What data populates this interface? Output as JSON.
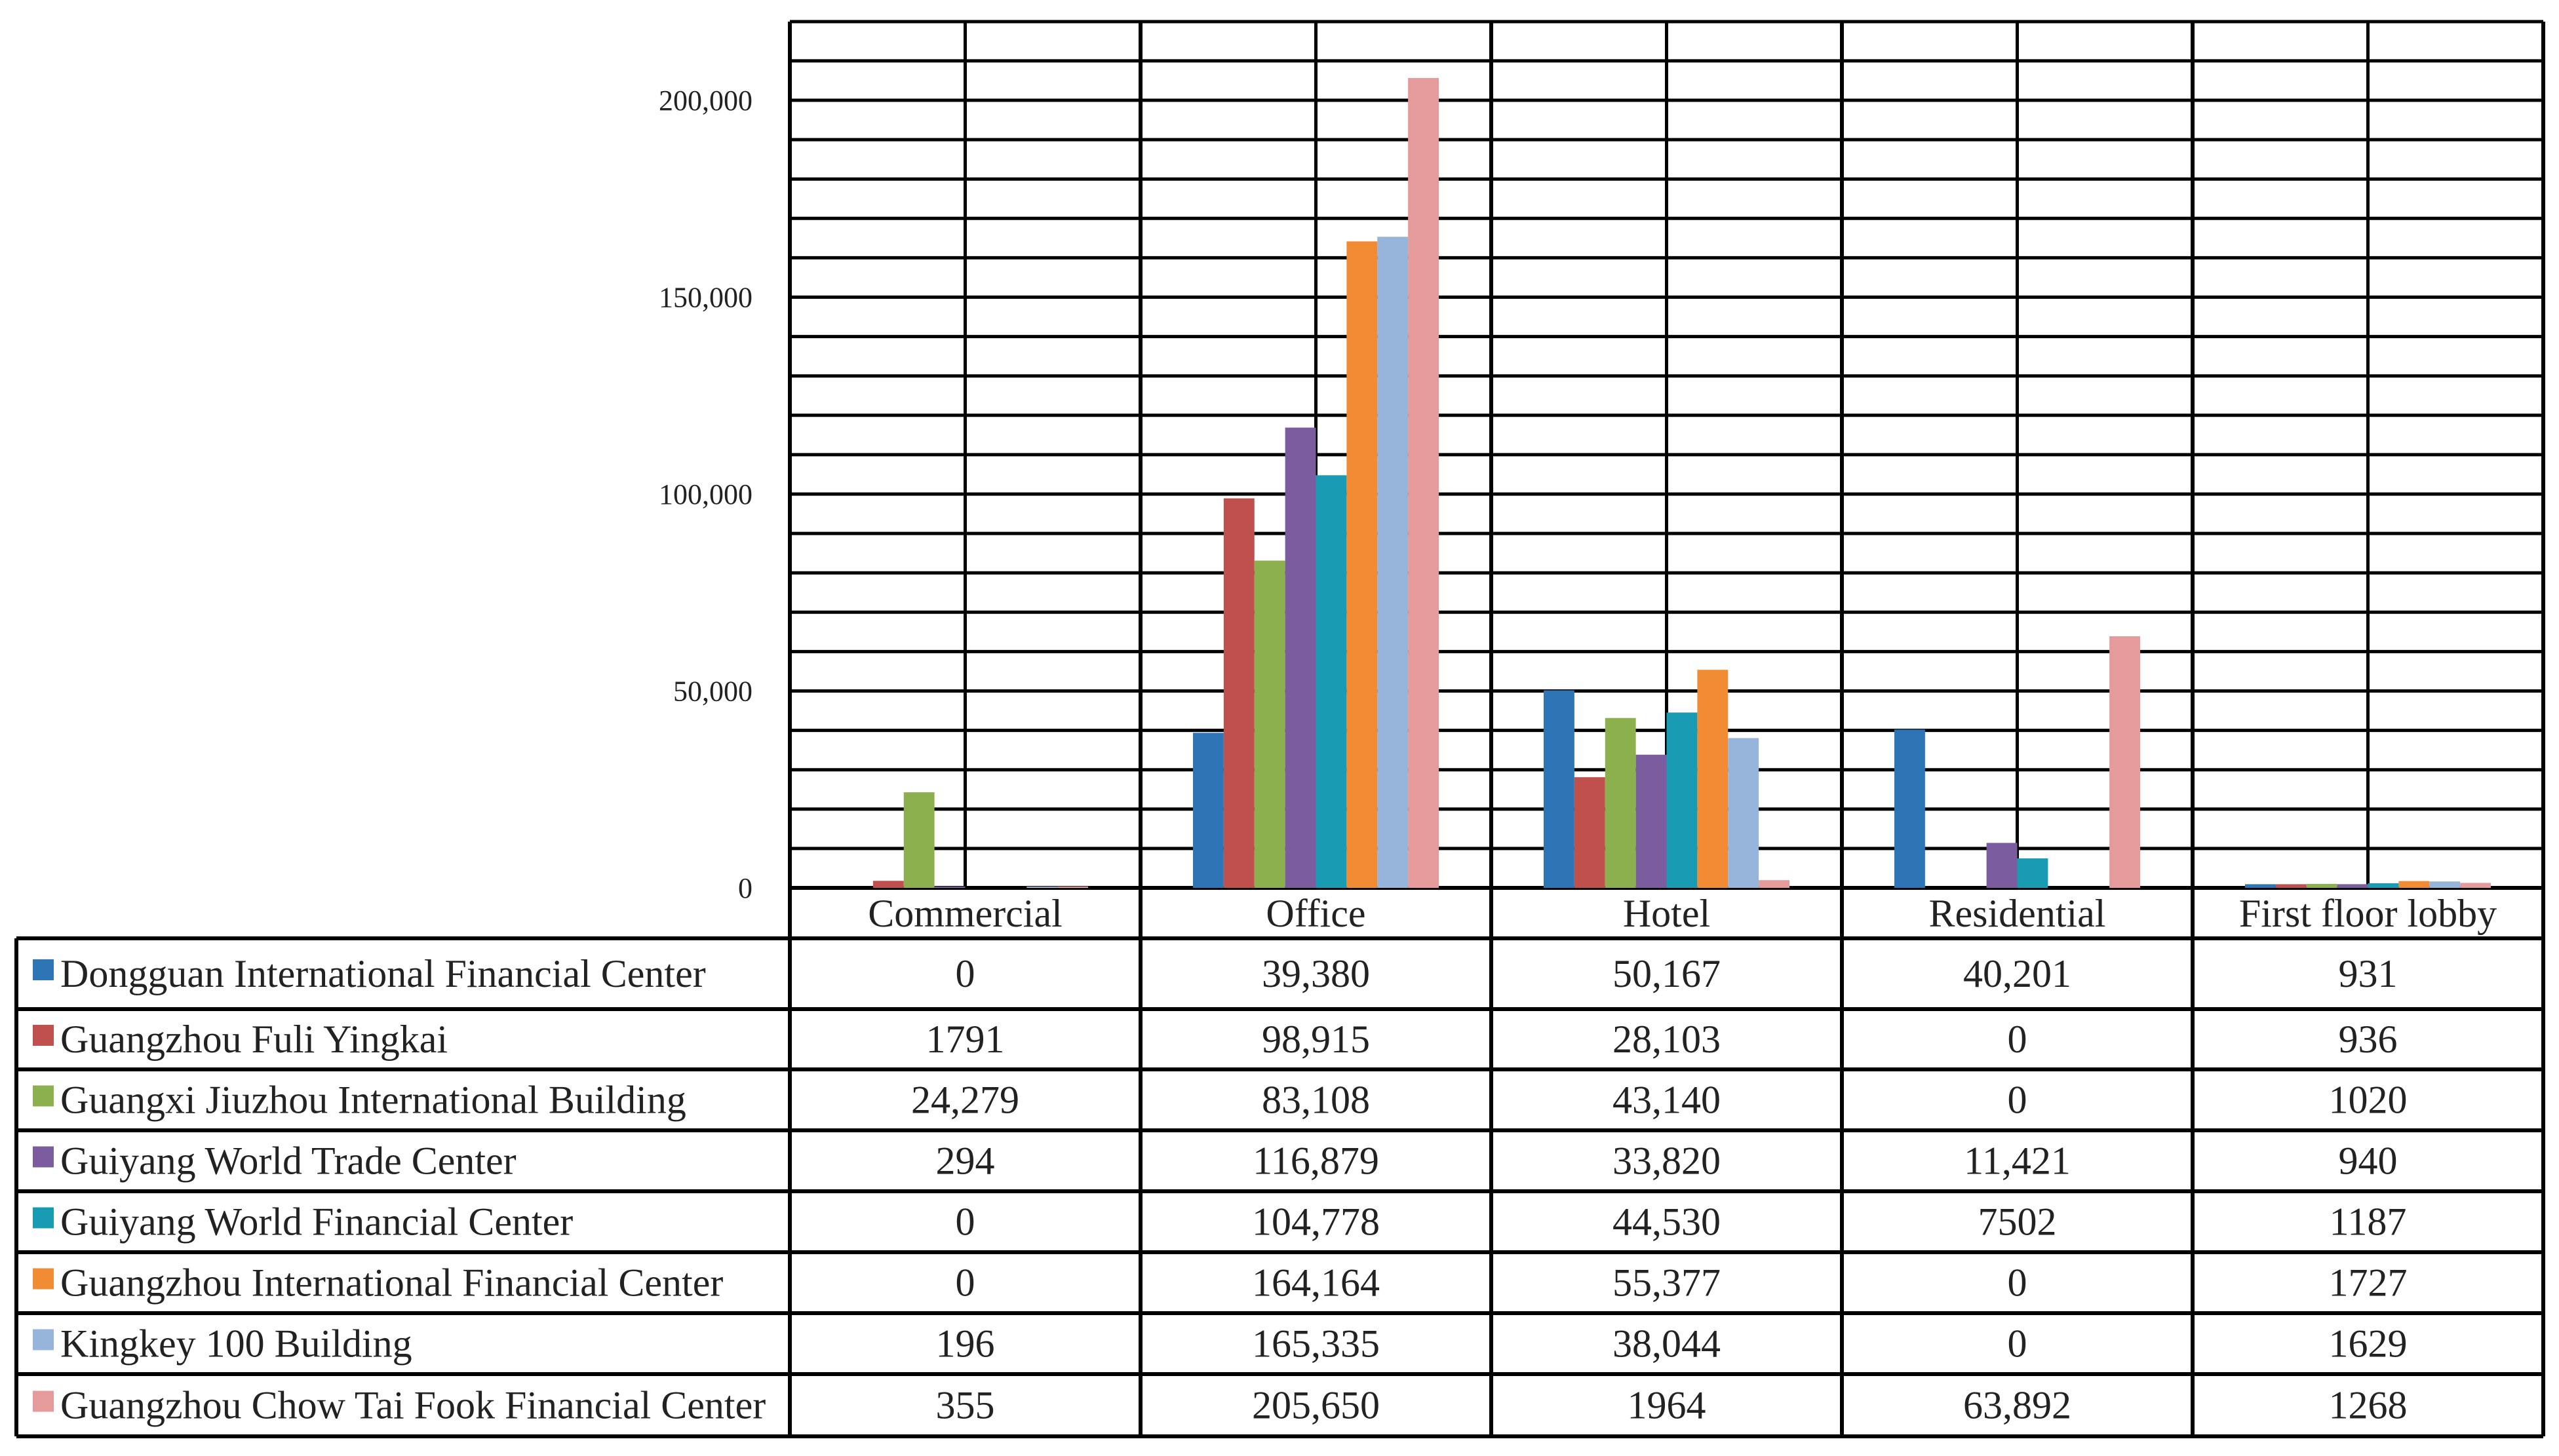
{
  "chart_data": {
    "type": "bar",
    "title": "",
    "xlabel": "",
    "ylabel": "",
    "ylim": [
      0,
      220000
    ],
    "yticks": [
      0,
      50000,
      100000,
      150000,
      200000
    ],
    "ytick_labels": [
      "0",
      "50,000",
      "100,000",
      "150,000",
      "200,000"
    ],
    "grid": true,
    "legend": "data-table-left",
    "categories": [
      "Commercial",
      "Office",
      "Hotel",
      "Residential",
      "First floor lobby"
    ],
    "series": [
      {
        "name": "Dongguan International Financial Center",
        "color": "#2E75B6",
        "values": [
          0,
          39380,
          50167,
          40201,
          931
        ],
        "labels": [
          "0",
          "39,380",
          "50,167",
          "40,201",
          "931"
        ]
      },
      {
        "name": "Guangzhou Fuli Yingkai",
        "color": "#C0504D",
        "values": [
          1791,
          98915,
          28103,
          0,
          936
        ],
        "labels": [
          "1791",
          "98,915",
          "28,103",
          "0",
          "936"
        ]
      },
      {
        "name": "Guangxi Jiuzhou International Building",
        "color": "#8DB04F",
        "values": [
          24279,
          83108,
          43140,
          0,
          1020
        ],
        "labels": [
          "24,279",
          "83,108",
          "43,140",
          "0",
          "1020"
        ]
      },
      {
        "name": "Guiyang World Trade Center",
        "color": "#7B5C9E",
        "values": [
          294,
          116879,
          33820,
          11421,
          940
        ],
        "labels": [
          "294",
          "116,879",
          "33,820",
          "11,421",
          "940"
        ]
      },
      {
        "name": "Guiyang World Financial Center",
        "color": "#1A9BB4",
        "values": [
          0,
          104778,
          44530,
          7502,
          1187
        ],
        "labels": [
          "0",
          "104,778",
          "44,530",
          "7502",
          "1187"
        ]
      },
      {
        "name": "Guangzhou International Financial Center",
        "color": "#F28C34",
        "values": [
          0,
          164164,
          55377,
          0,
          1727
        ],
        "labels": [
          "0",
          "164,164",
          "55,377",
          "0",
          "1727"
        ]
      },
      {
        "name": "Kingkey 100 Building",
        "color": "#97B4DB",
        "values": [
          196,
          165335,
          38044,
          0,
          1629
        ],
        "labels": [
          "196",
          "165,335",
          "38,044",
          "0",
          "1629"
        ]
      },
      {
        "name": "Guangzhou Chow Tai Fook Financial Center",
        "color": "#E59A9C",
        "values": [
          355,
          205650,
          1964,
          63892,
          1268
        ],
        "labels": [
          "355",
          "205,650",
          "1964",
          "63,892",
          "1268"
        ]
      }
    ]
  }
}
